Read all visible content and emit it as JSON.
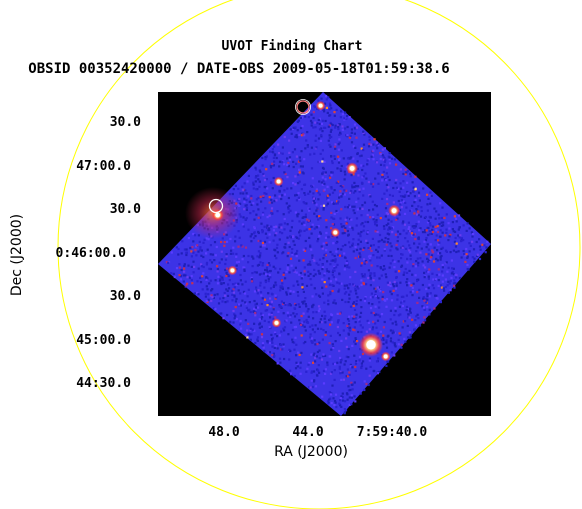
{
  "chart_data": {
    "type": "image",
    "title": "UVOT Finding Chart",
    "subtitle": "OBSID 00352420000 / DATE-OBS 2009-05-18T01:59:38.6",
    "xlabel": "RA (J2000)",
    "ylabel": "Dec (J2000)",
    "x_ticks": [
      "48.0",
      "44.0",
      "7:59:40.0"
    ],
    "y_ticks": [
      "30.0",
      "47:00.0",
      "30.0",
      "0:46:00.0",
      "30.0",
      "45:00.0",
      "44:30.0"
    ],
    "sources": [
      {
        "ra": "7:59:43.4",
        "dec": "0:47:40",
        "mag": 2
      },
      {
        "ra": "7:59:48.3",
        "dec": "0:46:25",
        "mag": 2.5
      },
      {
        "ra": "7:59:45.4",
        "dec": "0:46:48",
        "mag": 2
      },
      {
        "ra": "7:59:41.9",
        "dec": "0:46:57",
        "mag": 2.5
      },
      {
        "ra": "7:59:39.9",
        "dec": "0:46:28",
        "mag": 2.5
      },
      {
        "ra": "7:59:42.7",
        "dec": "0:46:13",
        "mag": 2
      },
      {
        "ra": "7:59:47.6",
        "dec": "0:45:47",
        "mag": 2
      },
      {
        "ra": "7:59:45.5",
        "dec": "0:45:11",
        "mag": 2
      },
      {
        "ra": "7:59:41.0",
        "dec": "0:44:56",
        "mag": 5
      },
      {
        "ra": "7:59:40.3",
        "dec": "0:44:48",
        "mag": 2
      }
    ],
    "markers": [
      {
        "ra": "7:59:43.2",
        "dec": "0:47:45",
        "color": "#ff6666"
      },
      {
        "ra": "7:59:47.7",
        "dec": "0:46:23",
        "color": "#ffffff"
      }
    ],
    "ellipse_color": "#ffff00",
    "colormap": [
      "#000000",
      "#2222cc",
      "#4433ff",
      "#cc2244",
      "#ff8800",
      "#ffffff"
    ]
  }
}
